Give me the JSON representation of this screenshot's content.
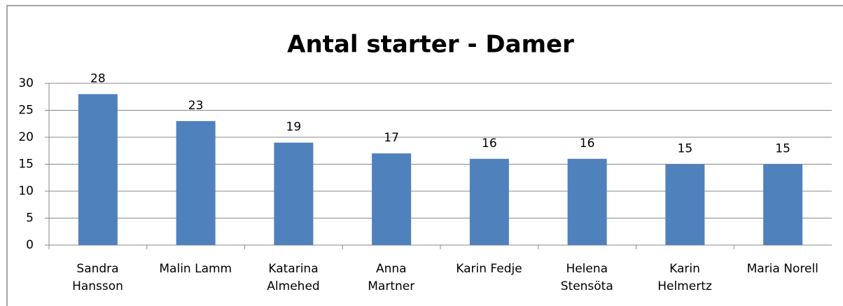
{
  "chart_data": {
    "type": "bar",
    "title": "Antal starter - Damer",
    "categories": [
      "Sandra\nHansson",
      "Malin Lamm",
      "Katarina\nAlmehed",
      "Anna\nMartner",
      "Karin Fedje",
      "Helena\nStensöta",
      "Karin\nHelmertz",
      "Maria Norell"
    ],
    "values": [
      28,
      23,
      19,
      17,
      16,
      16,
      15,
      15
    ],
    "color": "#4f81bd",
    "ylim": [
      0,
      30
    ],
    "yticks": [
      0,
      5,
      10,
      15,
      20,
      25,
      30
    ],
    "grid": true
  }
}
